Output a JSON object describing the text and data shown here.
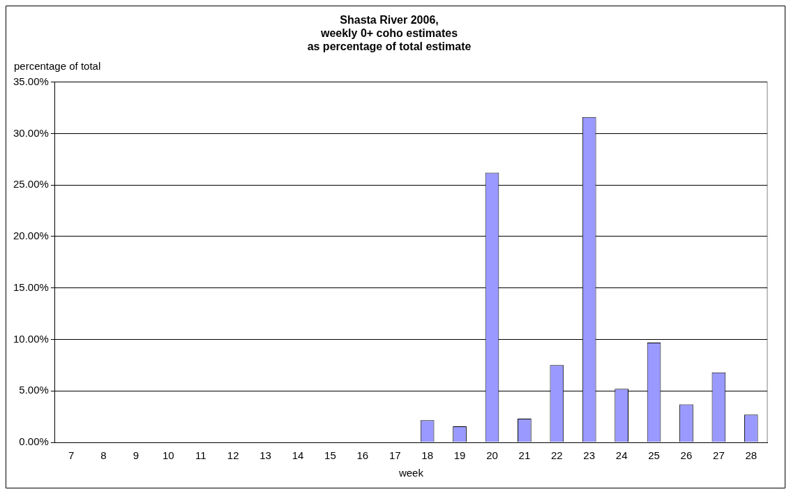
{
  "chart_data": {
    "type": "bar",
    "title": "Shasta River 2006,\nweekly 0+ coho estimates\nas percentage of total estimate",
    "xlabel": "week",
    "ylabel": "percentage of total",
    "categories": [
      "7",
      "8",
      "9",
      "10",
      "11",
      "12",
      "13",
      "14",
      "15",
      "16",
      "17",
      "18",
      "19",
      "20",
      "21",
      "22",
      "23",
      "24",
      "25",
      "26",
      "27",
      "28"
    ],
    "values": [
      0,
      0,
      0,
      0,
      0,
      0,
      0,
      0,
      0,
      0,
      0,
      2.15,
      1.56,
      26.2,
      2.3,
      7.5,
      31.6,
      5.2,
      9.7,
      3.7,
      6.8,
      2.7
    ],
    "color": "#9999ff",
    "ylim": [
      0,
      35
    ],
    "yticks": [
      {
        "value": 0,
        "label": "0.00%"
      },
      {
        "value": 5,
        "label": "5.00%"
      },
      {
        "value": 10,
        "label": "10.00%"
      },
      {
        "value": 15,
        "label": "15.00%"
      },
      {
        "value": 20,
        "label": "20.00%"
      },
      {
        "value": 25,
        "label": "25.00%"
      },
      {
        "value": 30,
        "label": "30.00%"
      },
      {
        "value": 35,
        "label": "35.00%"
      }
    ],
    "grid": "y",
    "legend": false
  }
}
